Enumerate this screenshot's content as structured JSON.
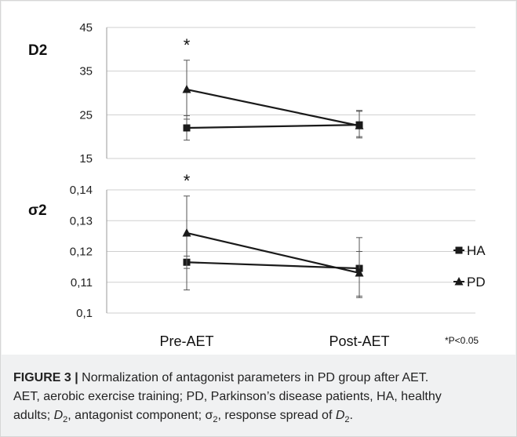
{
  "chart_data": [
    {
      "type": "line",
      "panel_label": "D2",
      "categories": [
        "Pre-AET",
        "Post-AET"
      ],
      "ylim": [
        15,
        45
      ],
      "yticks": [
        "15",
        "25",
        "35",
        "45"
      ],
      "grid": true,
      "series": [
        {
          "name": "HA",
          "marker": "square",
          "values": [
            22,
            22.7
          ],
          "err_high": [
            24.8,
            25.8
          ],
          "err_low": [
            19.2,
            19.7
          ]
        },
        {
          "name": "PD",
          "marker": "triangle",
          "values": [
            30.8,
            22.5
          ],
          "err_high": [
            37.5,
            26.0
          ],
          "err_low": [
            24.0,
            20.0
          ]
        }
      ],
      "annotation": {
        "text": "*",
        "category": "Pre-AET"
      }
    },
    {
      "type": "line",
      "panel_label": "σ2",
      "categories": [
        "Pre-AET",
        "Post-AET"
      ],
      "ylim": [
        0.1,
        0.14
      ],
      "yticks": [
        "0,1",
        "0,11",
        "0,12",
        "0,13",
        "0,14"
      ],
      "grid": true,
      "series": [
        {
          "name": "HA",
          "marker": "square",
          "values": [
            0.1165,
            0.1145
          ],
          "err_high": [
            0.1185,
            0.1245
          ],
          "err_low": [
            0.1145,
            0.1055
          ]
        },
        {
          "name": "PD",
          "marker": "triangle",
          "values": [
            0.126,
            0.113
          ],
          "err_high": [
            0.138,
            0.12
          ],
          "err_low": [
            0.1075,
            0.105
          ]
        }
      ],
      "annotation": {
        "text": "*",
        "category": "Pre-AET"
      }
    }
  ],
  "legend": [
    {
      "name": "HA",
      "marker": "square"
    },
    {
      "name": "PD",
      "marker": "triangle"
    }
  ],
  "footnote": "*P<0.05",
  "caption": {
    "label": "FIGURE 3 |",
    "line1": " Normalization of antagonist parameters in PD group after AET.",
    "line2": "AET, aerobic exercise training; PD, Parkinson’s disease patients, HA, healthy",
    "line3a": "adults; ",
    "d": "D",
    "sub2": "2",
    "line3b": ", antagonist component; σ",
    "line3c": ", response spread of ",
    "line3d": "."
  },
  "colors": {
    "line": "#1a1a1a",
    "grid": "#cfcfcf",
    "background": "#ffffff"
  }
}
